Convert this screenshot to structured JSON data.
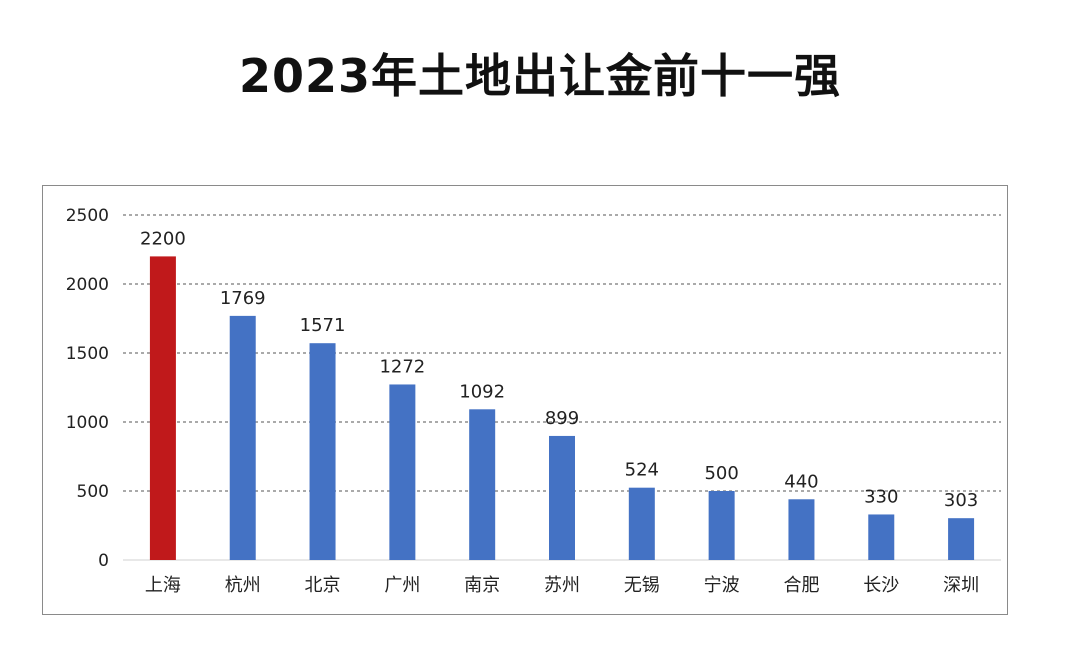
{
  "page": {
    "title": "2023年土地出让金前十一强"
  },
  "chart_data": {
    "type": "bar",
    "title": "2023年土地出让金前十一强",
    "xlabel": "",
    "ylabel": "",
    "categories": [
      "上海",
      "杭州",
      "北京",
      "广州",
      "南京",
      "苏州",
      "无锡",
      "宁波",
      "合肥",
      "长沙",
      "深圳"
    ],
    "values": [
      2200,
      1769,
      1571,
      1272,
      1092,
      899,
      524,
      500,
      440,
      330,
      303
    ],
    "ylim": [
      0,
      2500
    ],
    "yticks": [
      0,
      500,
      1000,
      1500,
      2000,
      2500
    ],
    "grid": true,
    "legend": "none",
    "colors": {
      "highlight": "#c0191b",
      "default": "#4472c4",
      "grid": "#555555"
    },
    "highlight_index": 0
  }
}
